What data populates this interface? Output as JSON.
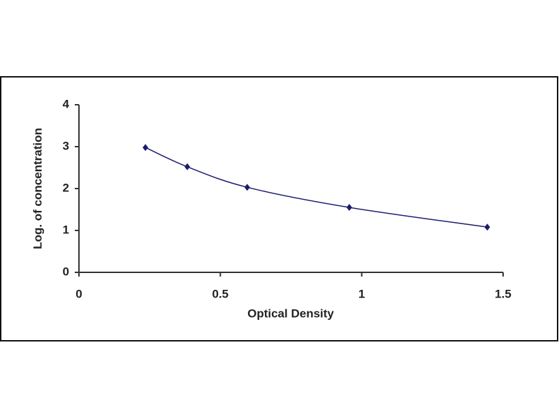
{
  "chart_data": {
    "type": "line",
    "x_label": "Optical Density",
    "y_label": "Log. of concentration",
    "x": [
      0.235,
      0.383,
      0.595,
      0.956,
      1.444
    ],
    "values": [
      2.98,
      2.52,
      2.03,
      1.55,
      1.08
    ],
    "color": "#1c1c6e",
    "smooth": true,
    "xlim": [
      0,
      1.5
    ],
    "xticks": [
      0,
      0.5,
      1,
      1.5
    ],
    "ylim": [
      0,
      4
    ],
    "yticks": [
      0,
      1,
      2,
      3,
      4
    ]
  }
}
